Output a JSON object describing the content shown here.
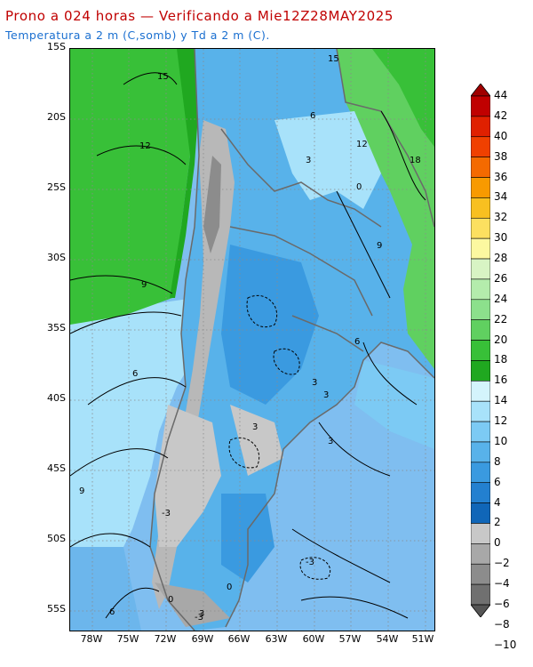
{
  "header": {
    "title": "Prono a 024 horas — Verificando a Mie12Z28MAY2025",
    "subtitle": "Temperatura a 2 m (C,somb) y Td a 2 m (C)."
  },
  "map": {
    "lat_labels": [
      "15S",
      "20S",
      "25S",
      "30S",
      "35S",
      "40S",
      "45S",
      "50S",
      "55S"
    ],
    "lon_labels": [
      "78W",
      "75W",
      "72W",
      "69W",
      "66W",
      "63W",
      "60W",
      "57W",
      "54W",
      "51W"
    ],
    "contour_labels": [
      "15",
      "15",
      "12",
      "12",
      "18",
      "9",
      "9",
      "9",
      "6",
      "6",
      "6",
      "6",
      "3",
      "3",
      "3",
      "3",
      "3",
      "3",
      "0",
      "0",
      "0",
      "-3",
      "-3",
      "-3"
    ]
  },
  "colorbar": {
    "labels": [
      "44",
      "42",
      "40",
      "38",
      "36",
      "34",
      "32",
      "30",
      "28",
      "26",
      "24",
      "22",
      "20",
      "18",
      "16",
      "14",
      "12",
      "10",
      "8",
      "6",
      "4",
      "2",
      "0",
      "−2",
      "−4",
      "−6",
      "−8",
      "−10"
    ],
    "colors": [
      "#a00000",
      "#c00000",
      "#e02000",
      "#f04000",
      "#f46a00",
      "#f89a00",
      "#f8c020",
      "#fce060",
      "#fcf8a0",
      "#d8f4c4",
      "#b4ecac",
      "#8ce08c",
      "#60d060",
      "#38c038",
      "#20a820",
      "#d4f4fc",
      "#a8e2fa",
      "#7ccaf4",
      "#58b2ea",
      "#3a9ae0",
      "#2380d0",
      "#1066b8",
      "#c8c8c8",
      "#a8a8a8",
      "#8c8c8c",
      "#707070",
      "#555555"
    ]
  }
}
